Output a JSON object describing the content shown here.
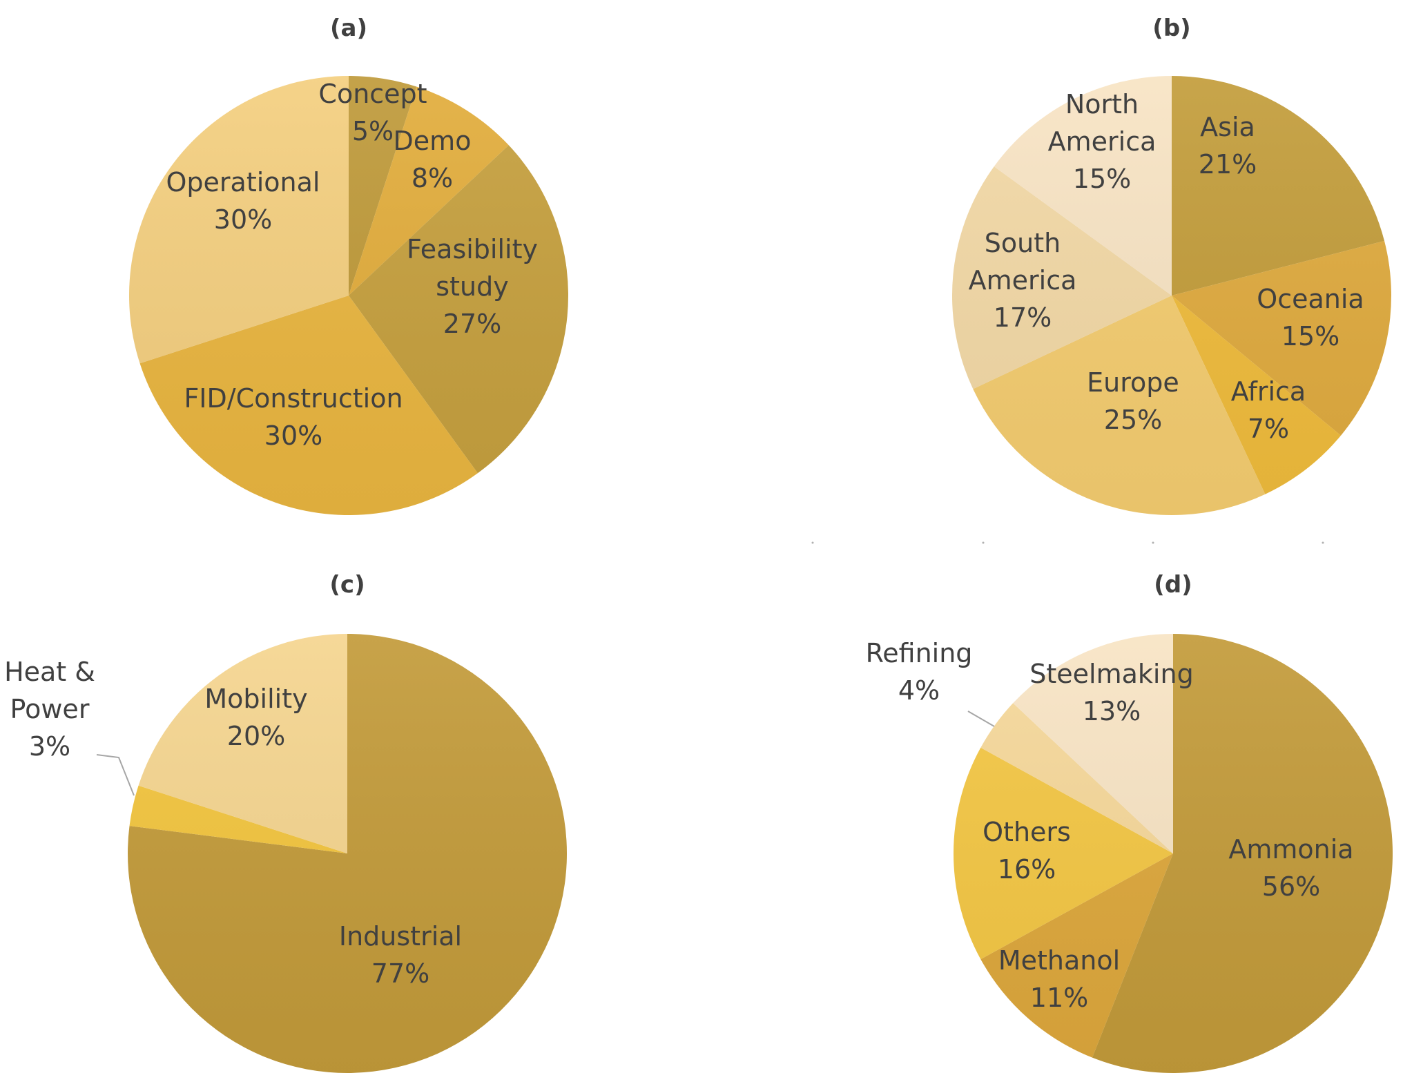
{
  "chart_data": [
    {
      "type": "pie",
      "title": "(a)",
      "slices": [
        {
          "label": "Concept",
          "value": 5,
          "text": [
            "Concept",
            "5%"
          ],
          "color": "#bf9a3a"
        },
        {
          "label": "Demo",
          "value": 8,
          "text": [
            "Demo",
            "8%"
          ],
          "color": "#e2ad3c"
        },
        {
          "label": "Feasibility study",
          "value": 27,
          "text": [
            "Feasibility",
            "study",
            "27%"
          ],
          "color": "#c6a03e"
        },
        {
          "label": "FID/Construction",
          "value": 30,
          "text": [
            "FID/Construction",
            "30%"
          ],
          "color": "#eab640"
        },
        {
          "label": "Operational",
          "value": 30,
          "text": [
            "Operational",
            "30%"
          ],
          "color": "#f4cf7f"
        }
      ]
    },
    {
      "type": "pie",
      "title": "(b)",
      "slices": [
        {
          "label": "Asia",
          "value": 21,
          "text": [
            "Asia",
            "21%"
          ],
          "color": "#c39d3b"
        },
        {
          "label": "Oceania",
          "value": 15,
          "text": [
            "Oceania",
            "15%"
          ],
          "color": "#e0ab3f"
        },
        {
          "label": "Africa",
          "value": 7,
          "text": [
            "Africa",
            "7%"
          ],
          "color": "#f0bc3c"
        },
        {
          "label": "Europe",
          "value": 25,
          "text": [
            "Europe",
            "25%"
          ],
          "color": "#f5cd70"
        },
        {
          "label": "South America",
          "value": 17,
          "text": [
            "South",
            "America",
            "17%"
          ],
          "color": "#f3d9a6"
        },
        {
          "label": "North America",
          "value": 15,
          "text": [
            "North",
            "America",
            "15%"
          ],
          "color": "#f8e4c4"
        }
      ]
    },
    {
      "type": "pie",
      "title": "(c)",
      "slices": [
        {
          "label": "Industrial",
          "value": 77,
          "text": [
            "Industrial",
            "77%"
          ],
          "color": "#c39b3a"
        },
        {
          "label": "Heat & Power",
          "value": 3,
          "text": [
            "Heat &",
            "Power",
            "3%"
          ],
          "color": "#f3c53e"
        },
        {
          "label": "Mobility",
          "value": 20,
          "text": [
            "Mobility",
            "20%"
          ],
          "color": "#f5d58f"
        }
      ]
    },
    {
      "type": "pie",
      "title": "(d)",
      "slices": [
        {
          "label": "Ammonia",
          "value": 56,
          "text": [
            "Ammonia",
            "56%"
          ],
          "color": "#c39b3a"
        },
        {
          "label": "Methanol",
          "value": 11,
          "text": [
            "Methanol",
            "11%"
          ],
          "color": "#dea83c"
        },
        {
          "label": "Others",
          "value": 16,
          "text": [
            "Others",
            "16%"
          ],
          "color": "#f4c744"
        },
        {
          "label": "Refining",
          "value": 4,
          "text": [
            "Refining",
            "4%"
          ],
          "color": "#f6d89a"
        },
        {
          "label": "Steelmaking",
          "value": 13,
          "text": [
            "Steelmaking",
            "13%"
          ],
          "color": "#f8e4c4"
        }
      ]
    }
  ]
}
